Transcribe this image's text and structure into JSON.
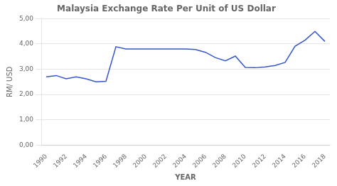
{
  "chart_data": {
    "type": "line",
    "title": "Malaysia Exchange Rate Per Unit of US Dollar",
    "x_label": "YEAR",
    "y_label": "RM/ USD",
    "x": [
      1990,
      1991,
      1992,
      1993,
      1994,
      1995,
      1996,
      1997,
      1998,
      1999,
      2000,
      2001,
      2002,
      2003,
      2004,
      2005,
      2006,
      2007,
      2008,
      2009,
      2010,
      2011,
      2012,
      2013,
      2014,
      2015,
      2016,
      2017,
      2018
    ],
    "values": [
      2.7,
      2.75,
      2.62,
      2.7,
      2.62,
      2.5,
      2.52,
      3.89,
      3.8,
      3.8,
      3.8,
      3.8,
      3.8,
      3.8,
      3.8,
      3.78,
      3.67,
      3.46,
      3.33,
      3.52,
      3.07,
      3.06,
      3.09,
      3.15,
      3.27,
      3.91,
      4.15,
      4.5,
      4.1
    ],
    "color": "#3356cc",
    "xlim": [
      1989.5,
      2018.5
    ],
    "xticks": [
      1990,
      1992,
      1994,
      1996,
      1998,
      2000,
      2002,
      2004,
      2006,
      2008,
      2010,
      2012,
      2014,
      2016,
      2018
    ],
    "ylim": [
      0,
      5.0
    ],
    "yticks": [
      {
        "value": 0.0,
        "label": "0,00"
      },
      {
        "value": 1.0,
        "label": "1,00"
      },
      {
        "value": 2.0,
        "label": "2,00"
      },
      {
        "value": 3.0,
        "label": "3,00"
      },
      {
        "value": 4.0,
        "label": "4,00"
      },
      {
        "value": 5.0,
        "label": "5,00"
      }
    ],
    "grid": "y"
  }
}
